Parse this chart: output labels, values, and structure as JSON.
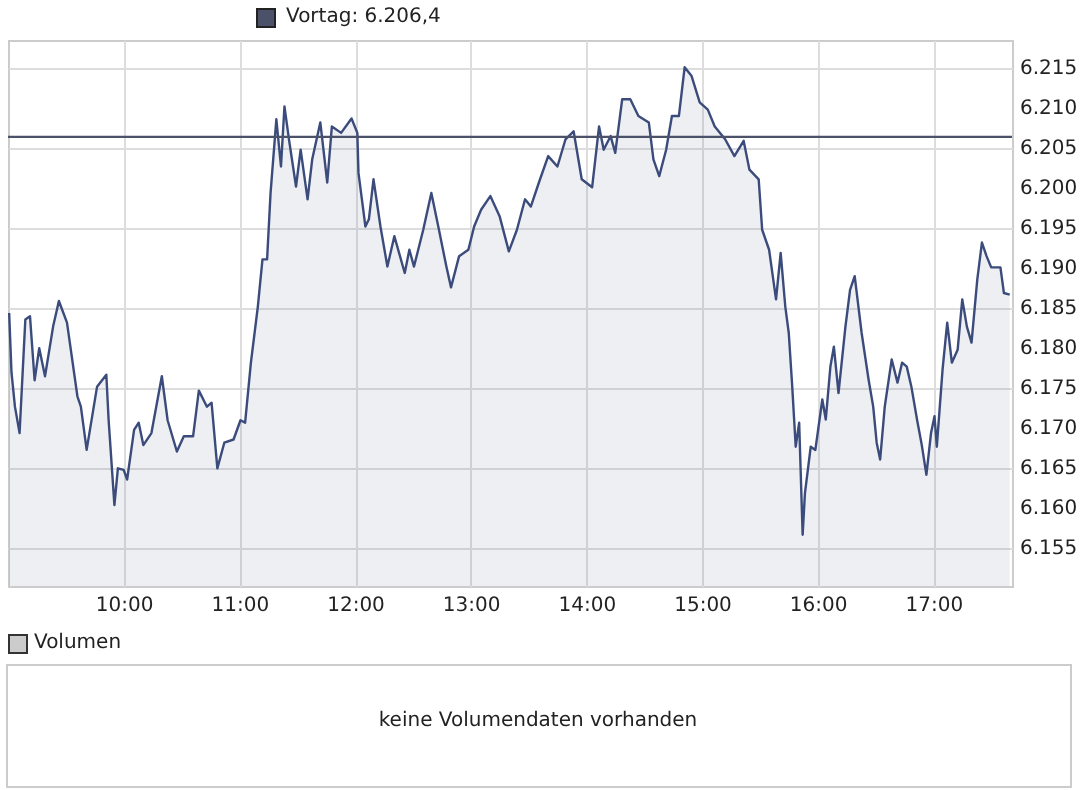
{
  "chart_data": [
    {
      "type": "area",
      "x": [
        9.01,
        9.03,
        9.06,
        9.1,
        9.15,
        9.19,
        9.23,
        9.27,
        9.32,
        9.39,
        9.44,
        9.51,
        9.6,
        9.63,
        9.68,
        9.77,
        9.85,
        9.87,
        9.92,
        9.95,
        10.0,
        10.03,
        10.09,
        10.13,
        10.17,
        10.24,
        10.33,
        10.38,
        10.46,
        10.52,
        10.6,
        10.65,
        10.72,
        10.76,
        10.81,
        10.87,
        10.95,
        11.01,
        11.05,
        11.1,
        11.16,
        11.2,
        11.24,
        11.27,
        11.32,
        11.36,
        11.39,
        11.43,
        11.49,
        11.53,
        11.59,
        11.63,
        11.7,
        11.76,
        11.8,
        11.88,
        11.97,
        12.02,
        12.03,
        12.09,
        12.12,
        12.16,
        12.22,
        12.28,
        12.34,
        12.43,
        12.47,
        12.51,
        12.59,
        12.66,
        12.72,
        12.79,
        12.83,
        12.9,
        12.98,
        13.03,
        13.09,
        13.17,
        13.25,
        13.33,
        13.4,
        13.47,
        13.52,
        13.59,
        13.67,
        13.75,
        13.82,
        13.89,
        13.96,
        14.05,
        14.11,
        14.15,
        14.21,
        14.25,
        14.31,
        14.38,
        14.45,
        14.54,
        14.58,
        14.63,
        14.69,
        14.74,
        14.8,
        14.85,
        14.91,
        14.98,
        15.05,
        15.11,
        15.2,
        15.28,
        15.36,
        15.41,
        15.49,
        15.52,
        15.58,
        15.64,
        15.68,
        15.72,
        15.75,
        15.78,
        15.81,
        15.84,
        15.87,
        15.89,
        15.94,
        15.98,
        16.04,
        16.07,
        16.11,
        16.14,
        16.18,
        16.24,
        16.28,
        16.32,
        16.38,
        16.44,
        16.48,
        16.51,
        16.54,
        16.58,
        16.64,
        16.69,
        16.73,
        16.77,
        16.81,
        16.86,
        16.9,
        16.94,
        16.98,
        17.01,
        17.03,
        17.08,
        17.12,
        17.16,
        17.21,
        17.25,
        17.29,
        17.33,
        17.38,
        17.42,
        17.46,
        17.5,
        17.58,
        17.61,
        17.66
      ],
      "series": [
        {
          "color": "#3b4b7b",
          "values": [
            6184.4,
            6177,
            6172.7,
            6169.4,
            6183.6,
            6184,
            6176,
            6180,
            6176.5,
            6182.7,
            6185.9,
            6183.2,
            6174,
            6172.7,
            6167.3,
            6175.2,
            6176.7,
            6171,
            6160.4,
            6165,
            6164.8,
            6163.6,
            6169.8,
            6170.7,
            6167.9,
            6169.4,
            6176.5,
            6171,
            6167.1,
            6169,
            6169,
            6174.7,
            6172.7,
            6173.2,
            6165,
            6168.2,
            6168.6,
            6171,
            6170.7,
            6178.2,
            6185.2,
            6191.1,
            6191.1,
            6199.4,
            6208.6,
            6202.7,
            6210.2,
            6206,
            6200.2,
            6204.8,
            6198.6,
            6203.6,
            6208.2,
            6200.7,
            6207.7,
            6206.9,
            6208.7,
            6206.9,
            6201.9,
            6195.2,
            6196.1,
            6201.1,
            6195.2,
            6190.2,
            6194,
            6189.4,
            6192.3,
            6190.2,
            6194.8,
            6199.4,
            6195.2,
            6190.2,
            6187.6,
            6191.5,
            6192.3,
            6195.2,
            6197.3,
            6199,
            6196.5,
            6192.1,
            6194.8,
            6198.6,
            6197.7,
            6200.7,
            6204,
            6202.7,
            6206.1,
            6207.1,
            6201.1,
            6200.1,
            6207.7,
            6204.8,
            6206.5,
            6204.4,
            6211.1,
            6211.1,
            6209,
            6208.2,
            6203.6,
            6201.5,
            6204.8,
            6209,
            6209,
            6215.1,
            6214,
            6210.7,
            6209.8,
            6207.7,
            6206.1,
            6204,
            6205.9,
            6202.3,
            6201.1,
            6194.8,
            6192.3,
            6186.1,
            6191.9,
            6185.2,
            6181.9,
            6175.2,
            6167.7,
            6170.7,
            6156.7,
            6161.9,
            6167.7,
            6167.3,
            6173.6,
            6171.1,
            6177.7,
            6180.2,
            6174.4,
            6182.7,
            6187.3,
            6189,
            6181.9,
            6176.1,
            6172.7,
            6168.2,
            6166.1,
            6172.7,
            6178.6,
            6175.7,
            6178.2,
            6177.7,
            6175.2,
            6171,
            6167.9,
            6164.2,
            6169.4,
            6171.5,
            6167.7,
            6177.4,
            6183.2,
            6178.2,
            6179.8,
            6186.1,
            6182.7,
            6180.7,
            6188.6,
            6193.2,
            6191.5,
            6190.1,
            6190.1,
            6186.9,
            6186.7
          ]
        }
      ],
      "xlim": [
        9.0,
        17.68
      ],
      "xticks": [
        {
          "value": 10,
          "label": "10:00"
        },
        {
          "value": 11,
          "label": "11:00"
        },
        {
          "value": 12,
          "label": "12:00"
        },
        {
          "value": 13,
          "label": "13:00"
        },
        {
          "value": 14,
          "label": "14:00"
        },
        {
          "value": 15,
          "label": "15:00"
        },
        {
          "value": 16,
          "label": "16:00"
        },
        {
          "value": 17,
          "label": "17:00"
        }
      ],
      "ylim": [
        6150.3,
        6218.5
      ],
      "yticks": [
        {
          "value": 6155,
          "label": "6.155"
        },
        {
          "value": 6160,
          "label": "6.160"
        },
        {
          "value": 6165,
          "label": "6.165"
        },
        {
          "value": 6170,
          "label": "6.170"
        },
        {
          "value": 6175,
          "label": "6.175"
        },
        {
          "value": 6180,
          "label": "6.180"
        },
        {
          "value": 6185,
          "label": "6.185"
        },
        {
          "value": 6190,
          "label": "6.190"
        },
        {
          "value": 6195,
          "label": "6.195"
        },
        {
          "value": 6200,
          "label": "6.200"
        },
        {
          "value": 6205,
          "label": "6.205"
        },
        {
          "value": 6210,
          "label": "6.210"
        },
        {
          "value": 6215,
          "label": "6.215"
        }
      ],
      "ref_lines": [
        {
          "axis": "y",
          "value": 6206.4,
          "label": "Vortag: 6.206,4",
          "color": "#4a5168"
        }
      ],
      "grid": true,
      "legend": "top"
    },
    {
      "type": "other",
      "title": "Volumen",
      "annotations": [
        "keine Volumendaten vorhanden"
      ]
    }
  ]
}
